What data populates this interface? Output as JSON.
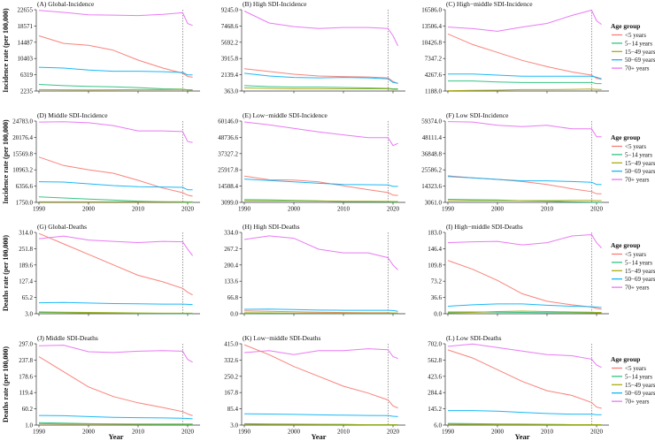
{
  "chart_data": {
    "type": "line",
    "years": [
      1990,
      1995,
      2000,
      2005,
      2010,
      2015,
      2019,
      2020,
      2021
    ],
    "xticks": [
      1990,
      2000,
      2010,
      2020
    ],
    "xlabel": "Year",
    "projection_marker_year": 2019,
    "legend": {
      "title": "Age group",
      "placement": "right",
      "entries": [
        {
          "name": "<5 years",
          "color": "#F8766D"
        },
        {
          "name": "5−14 years",
          "color": "#1FBF78"
        },
        {
          "name": "15−49 years",
          "color": "#A3A500"
        },
        {
          "name": "50−69 years",
          "color": "#00B0F6"
        },
        {
          "name": "70+ years",
          "color": "#E76BF3"
        }
      ]
    },
    "ylabels": {
      "incidence": "Incidence rate  (per 100,000)",
      "deaths": "Deaths rate (per 100,000)"
    },
    "panels": [
      {
        "title": "(A) Global-Incidence",
        "ylim": [
          2235,
          22655
        ],
        "yticks": [
          "2235",
          "6319",
          "10403",
          "14487",
          "18571",
          "22655"
        ],
        "series": [
          [
            16100,
            14200,
            13700,
            12500,
            10000,
            8000,
            6700,
            5900,
            5700
          ],
          [
            3900,
            3600,
            3400,
            3300,
            3100,
            2800,
            2700,
            2500,
            2500
          ],
          [
            2600,
            2550,
            2500,
            2550,
            2600,
            2600,
            2650,
            2550,
            2550
          ],
          [
            8200,
            8000,
            7500,
            7200,
            7200,
            7100,
            6900,
            6300,
            6300
          ],
          [
            22500,
            22000,
            21400,
            21300,
            21200,
            21500,
            21900,
            19200,
            18700
          ]
        ]
      },
      {
        "title": "(B) High SDI-Incidence",
        "ylim": [
          363,
          9245
        ],
        "yticks": [
          "363.0",
          "2139.4",
          "3915.8",
          "5692.2",
          "7468.6",
          "9245.0"
        ],
        "series": [
          [
            2800,
            2500,
            2200,
            2000,
            1950,
            1900,
            1800,
            1400,
            1200
          ],
          [
            950,
            850,
            800,
            800,
            750,
            700,
            650,
            600,
            600
          ],
          [
            700,
            650,
            600,
            600,
            600,
            600,
            600,
            550,
            550
          ],
          [
            2300,
            2000,
            1850,
            1800,
            1850,
            1800,
            1700,
            1300,
            1200
          ],
          [
            9100,
            7800,
            7400,
            7200,
            7300,
            7300,
            7200,
            6400,
            5300
          ]
        ]
      },
      {
        "title": "(C) High−middle SDI-Incidence",
        "ylim": [
          1188,
          16586
        ],
        "yticks": [
          "1188.0",
          "4267.6",
          "7347.2",
          "10426.8",
          "13506.4",
          "16586.0"
        ],
        "series": [
          [
            12000,
            10000,
            8500,
            7000,
            5800,
            4800,
            4200,
            3600,
            3400
          ],
          [
            3100,
            3100,
            2900,
            2800,
            2800,
            2800,
            2800,
            2600,
            2600
          ],
          [
            1250,
            1300,
            1350,
            1450,
            1450,
            1500,
            1550,
            1500,
            1450
          ],
          [
            4400,
            4400,
            4200,
            4000,
            4000,
            4000,
            4000,
            3800,
            3500
          ],
          [
            13300,
            13000,
            12500,
            13300,
            14000,
            15500,
            16500,
            14500,
            13800
          ]
        ]
      },
      {
        "title": "(D) Middle SDI-Incidence",
        "ylim": [
          1750,
          24783
        ],
        "yticks": [
          "1750.0",
          "6356.6",
          "10963.2",
          "15569.8",
          "20176.4",
          "24783.0"
        ],
        "series": [
          [
            14600,
            12200,
            11000,
            10000,
            8000,
            5800,
            4500,
            3800,
            3500
          ],
          [
            3300,
            3000,
            2700,
            2400,
            2100,
            1900,
            1800,
            1750,
            1750
          ],
          [
            1900,
            1900,
            1900,
            1900,
            1950,
            1950,
            1950,
            1900,
            1900
          ],
          [
            7600,
            7500,
            7000,
            6500,
            6200,
            6100,
            6000,
            5300,
            5300
          ],
          [
            24500,
            24600,
            24300,
            23500,
            22000,
            22000,
            21800,
            19000,
            18700
          ]
        ]
      },
      {
        "title": "(E) Low−middle SDI-Incidence",
        "ylim": [
          3099,
          60146
        ],
        "yticks": [
          "3099.0",
          "14508.4",
          "25917.8",
          "37327.2",
          "48736.6",
          "60146.0"
        ],
        "series": [
          [
            21500,
            19000,
            18800,
            17500,
            14700,
            12000,
            10000,
            8200,
            8000
          ],
          [
            5000,
            4900,
            4500,
            4200,
            3700,
            3600,
            3500,
            3300,
            3300
          ],
          [
            4300,
            4200,
            4200,
            4000,
            3900,
            3900,
            3800,
            3700,
            3700
          ],
          [
            19500,
            18500,
            17500,
            16500,
            15700,
            15500,
            15300,
            14300,
            14300
          ],
          [
            59500,
            57500,
            55000,
            52500,
            50500,
            48500,
            48500,
            43000,
            44500
          ]
        ]
      },
      {
        "title": "(F) Low SDI-Incidence",
        "ylim": [
          3061,
          59374
        ],
        "yticks": [
          "3061.0",
          "14323.6",
          "25586.2",
          "36848.8",
          "48111.4",
          "59374.0"
        ],
        "series": [
          [
            21500,
            20000,
            19000,
            17500,
            15500,
            12500,
            10500,
            9000,
            9000
          ],
          [
            5200,
            4900,
            4700,
            4200,
            3900,
            3400,
            3200,
            3100,
            3100
          ],
          [
            4300,
            4300,
            4300,
            4300,
            4300,
            4400,
            4400,
            4300,
            4300
          ],
          [
            21000,
            20000,
            19000,
            18000,
            18000,
            17500,
            17000,
            15500,
            15500
          ],
          [
            59000,
            58700,
            56500,
            55500,
            56500,
            54000,
            54000,
            48500,
            48500
          ]
        ]
      },
      {
        "title": "(G) Global-Deaths",
        "ylim": [
          3,
          314
        ],
        "yticks": [
          "3.0",
          "65.2",
          "127.4",
          "189.6",
          "251.8",
          "314.0"
        ],
        "series": [
          [
            310,
            270,
            230,
            190,
            150,
            125,
            100,
            85,
            75
          ],
          [
            8,
            7,
            6,
            5,
            4,
            4,
            3.5,
            3.5,
            3.5
          ],
          [
            10,
            9,
            8,
            7,
            6,
            5,
            5,
            5,
            5
          ],
          [
            45,
            46,
            44,
            42,
            41,
            40,
            40,
            39,
            38
          ],
          [
            290,
            300,
            285,
            280,
            275,
            280,
            278,
            250,
            225
          ]
        ]
      },
      {
        "title": "(H) High SDI-Deaths",
        "ylim": [
          0,
          334
        ],
        "yticks": [
          "0.0",
          "66.8",
          "133.6",
          "200.4",
          "267.2",
          "334.0"
        ],
        "series": [
          [
            12,
            10,
            8,
            6,
            5,
            4,
            4,
            3,
            3
          ],
          [
            1,
            1,
            1,
            1,
            1,
            1,
            1,
            1,
            1
          ],
          [
            4,
            3.5,
            3,
            3,
            2.5,
            2.5,
            2.5,
            2.5,
            2.5
          ],
          [
            18,
            19,
            17,
            15,
            14,
            14,
            14,
            13,
            10
          ],
          [
            305,
            320,
            310,
            265,
            250,
            250,
            230,
            200,
            180
          ]
        ]
      },
      {
        "title": "(I) High−middle SDI-Deaths",
        "ylim": [
          0,
          183
        ],
        "yticks": [
          "0.0",
          "36.6",
          "73.2",
          "109.8",
          "146.4",
          "183.0"
        ],
        "series": [
          [
            120,
            100,
            75,
            45,
            28,
            20,
            15,
            12,
            10
          ],
          [
            4,
            4,
            3.5,
            3,
            2.5,
            2.5,
            2,
            2,
            2
          ],
          [
            2,
            3,
            5,
            6,
            5,
            4,
            3.5,
            3,
            3
          ],
          [
            17,
            20,
            22,
            22,
            19,
            17,
            16,
            15,
            14
          ],
          [
            160,
            162,
            163,
            155,
            160,
            175,
            178,
            160,
            148
          ]
        ]
      },
      {
        "title": "(J) Middle SDI-Deaths",
        "ylim": [
          1,
          297
        ],
        "yticks": [
          "1.0",
          "60.2",
          "119.4",
          "178.6",
          "237.8",
          "297.0"
        ],
        "series": [
          [
            250,
            195,
            140,
            105,
            82,
            65,
            50,
            42,
            35
          ],
          [
            10,
            8,
            6,
            5,
            4,
            3,
            3,
            3,
            3
          ],
          [
            6,
            5,
            5,
            5,
            5,
            5,
            5,
            5,
            5
          ],
          [
            36,
            35,
            32,
            29,
            28,
            27,
            26,
            25,
            24
          ],
          [
            290,
            292,
            268,
            265,
            270,
            272,
            270,
            240,
            230
          ]
        ]
      },
      {
        "title": "(K) Low−middle SDI-Deaths",
        "ylim": [
          3,
          415
        ],
        "yticks": [
          "3.0",
          "85.4",
          "167.8",
          "250.2",
          "332.6",
          "415.0"
        ],
        "series": [
          [
            410,
            360,
            300,
            250,
            200,
            165,
            130,
            100,
            90
          ],
          [
            10,
            9,
            8,
            7,
            6,
            5,
            5,
            5,
            5
          ],
          [
            8,
            7,
            7,
            6,
            6,
            5,
            5,
            5,
            5
          ],
          [
            60,
            59,
            57,
            55,
            53,
            52,
            51,
            48,
            46
          ],
          [
            370,
            380,
            360,
            380,
            380,
            390,
            385,
            350,
            340
          ]
        ]
      },
      {
        "title": "(L) Low SDI-Deaths",
        "ylim": [
          6,
          702
        ],
        "yticks": [
          "6.0",
          "145.2",
          "284.4",
          "423.6",
          "562.8",
          "702.0"
        ],
        "series": [
          [
            650,
            580,
            480,
            380,
            300,
            260,
            200,
            160,
            150
          ],
          [
            20,
            18,
            16,
            14,
            12,
            10,
            9,
            8,
            8
          ],
          [
            14,
            13,
            12,
            12,
            11,
            10,
            10,
            10,
            10
          ],
          [
            130,
            130,
            125,
            115,
            105,
            100,
            100,
            95,
            95
          ],
          [
            680,
            700,
            670,
            640,
            610,
            600,
            570,
            520,
            500
          ]
        ]
      }
    ]
  }
}
